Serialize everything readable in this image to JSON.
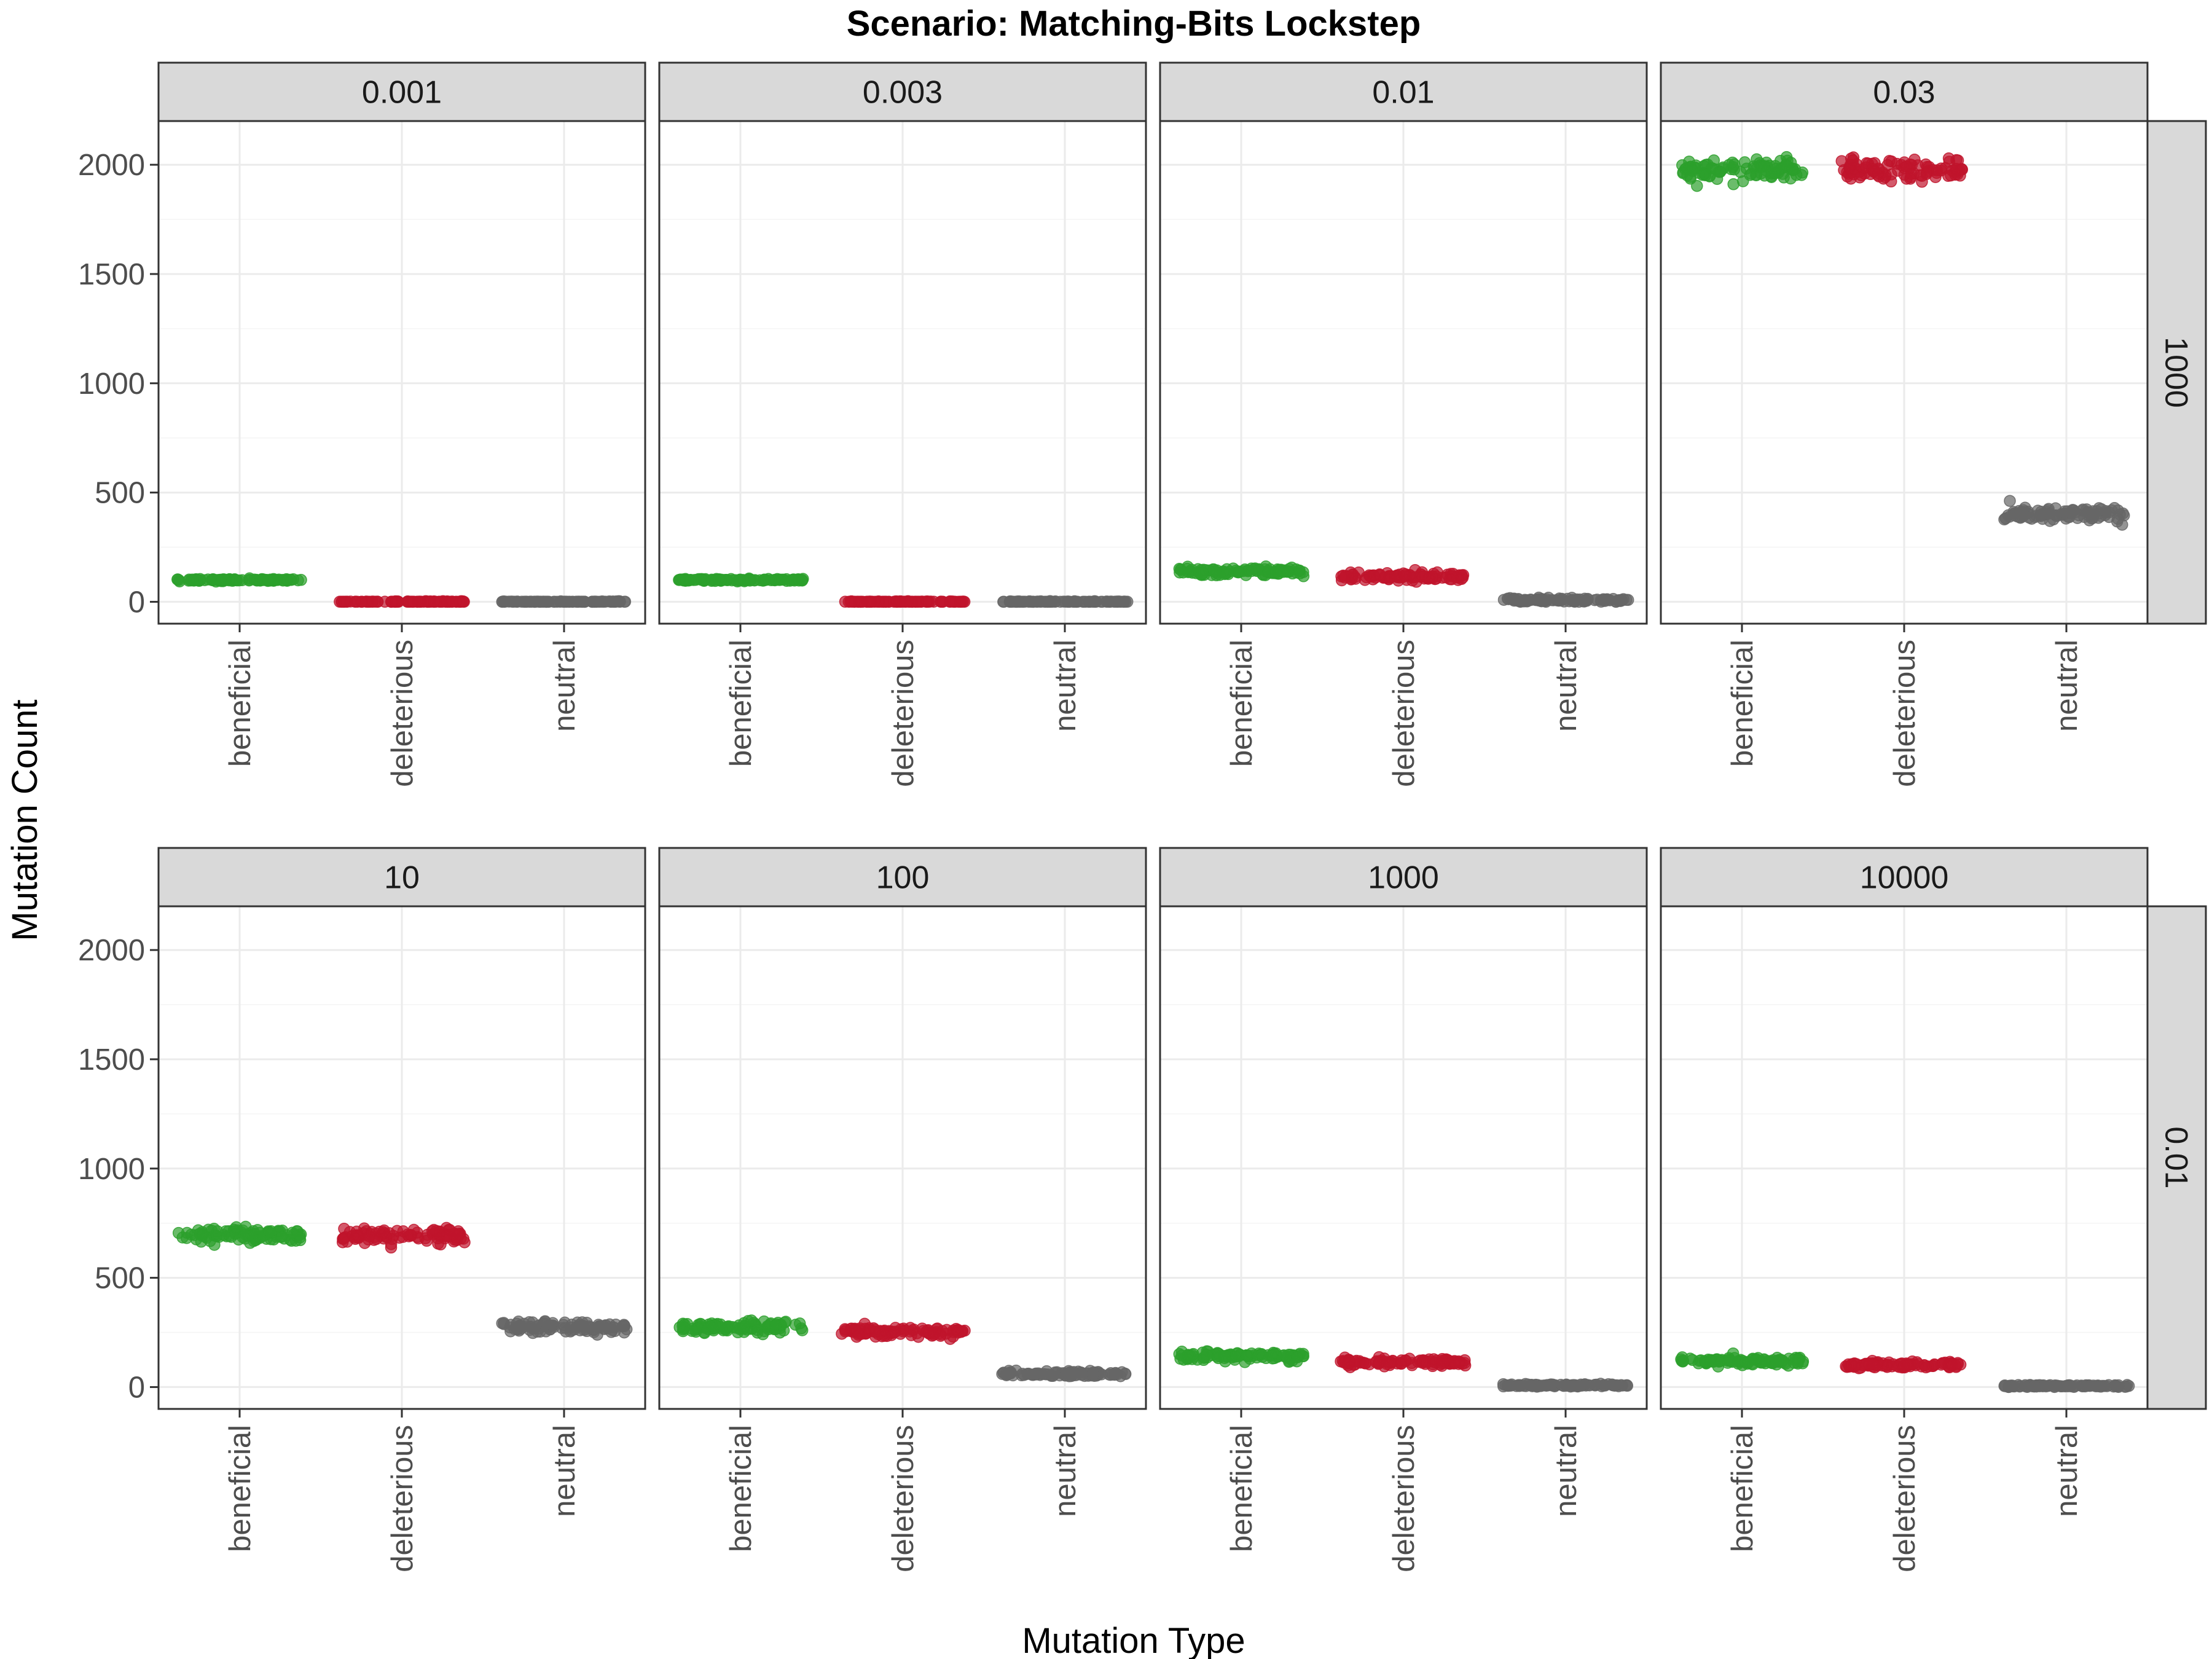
{
  "chart_data": {
    "type": "scatter",
    "title": "Scenario: Matching-Bits Lockstep",
    "xlabel": "Mutation Type",
    "ylabel": "Mutation Count",
    "categories": [
      "beneficial",
      "deleterious",
      "neutral"
    ],
    "ylim": [
      -100,
      2200
    ],
    "y_ticks": [
      0,
      500,
      1000,
      1500,
      2000
    ],
    "grid": true,
    "colors": {
      "beneficial": "#2ca02c",
      "deleterious": "#c0142c",
      "neutral": "#666666"
    },
    "rows": [
      {
        "strip": "1000",
        "panels": [
          {
            "strip": "0.001",
            "center": [
              100,
              0,
              0
            ],
            "spread": [
              4,
              2,
              2
            ]
          },
          {
            "strip": "0.003",
            "center": [
              100,
              0,
              0
            ],
            "spread": [
              4,
              2,
              2
            ]
          },
          {
            "strip": "0.01",
            "center": [
              140,
              115,
              8
            ],
            "spread": [
              18,
              16,
              6
            ]
          },
          {
            "strip": "0.03",
            "center": [
              1975,
              1975,
              400
            ],
            "spread": [
              40,
              40,
              30
            ]
          }
        ]
      },
      {
        "strip": "0.01",
        "panels": [
          {
            "strip": "10",
            "center": [
              695,
              695,
              275
            ],
            "spread": [
              28,
              30,
              22
            ]
          },
          {
            "strip": "100",
            "center": [
              275,
              255,
              60
            ],
            "spread": [
              20,
              18,
              10
            ]
          },
          {
            "strip": "1000",
            "center": [
              140,
              115,
              8
            ],
            "spread": [
              16,
              14,
              5
            ]
          },
          {
            "strip": "10000",
            "center": [
              120,
              100,
              5
            ],
            "spread": [
              15,
              12,
              4
            ]
          }
        ]
      }
    ],
    "points_per_group": 100
  }
}
